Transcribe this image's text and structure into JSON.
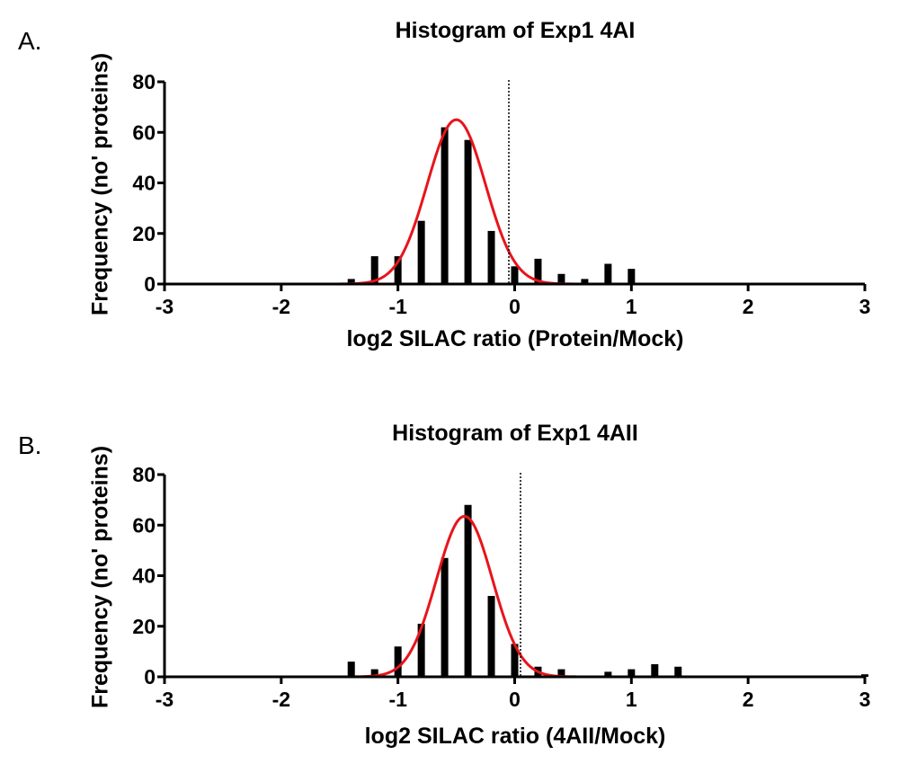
{
  "chart_data": [
    {
      "type": "bar",
      "panel_label": "A.",
      "title": "Histogram of Exp1 4AI",
      "xlabel": "log2 SILAC ratio (Protein/Mock)",
      "ylabel": "Frequency (no' proteins)",
      "xlim": [
        -3,
        3
      ],
      "ylim": [
        0,
        80
      ],
      "xticks": [
        -3,
        -2,
        -1,
        0,
        1,
        2,
        3
      ],
      "yticks": [
        0,
        20,
        40,
        60,
        80
      ],
      "bins": [
        -1.4,
        -1.2,
        -1.0,
        -0.8,
        -0.6,
        -0.4,
        -0.2,
        0.0,
        0.2,
        0.4,
        0.6,
        0.8,
        1.0
      ],
      "counts": [
        2,
        11,
        11,
        25,
        62,
        57,
        21,
        7,
        10,
        4,
        2,
        8,
        6
      ],
      "gaussian_fit": {
        "amplitude": 65,
        "mean": -0.5,
        "sd": 0.25
      },
      "reference_line_x": -0.05
    },
    {
      "type": "bar",
      "panel_label": "B.",
      "title": "Histogram of Exp1 4AII",
      "xlabel": "log2 SILAC ratio (4AII/Mock)",
      "ylabel": "Frequency (no' proteins)",
      "xlim": [
        -3,
        3
      ],
      "ylim": [
        0,
        80
      ],
      "xticks": [
        -3,
        -2,
        -1,
        0,
        1,
        2,
        3
      ],
      "yticks": [
        0,
        20,
        40,
        60,
        80
      ],
      "bins": [
        -1.4,
        -1.2,
        -1.0,
        -0.8,
        -0.6,
        -0.4,
        -0.2,
        0.0,
        0.2,
        0.4,
        0.8,
        1.0,
        1.2,
        1.4,
        3.0
      ],
      "counts": [
        6,
        3,
        12,
        21,
        47,
        68,
        32,
        13,
        4,
        3,
        2,
        3,
        5,
        4,
        1
      ],
      "gaussian_fit": {
        "amplitude": 63.5,
        "mean": -0.43,
        "sd": 0.24
      },
      "reference_line_x": 0.05
    }
  ],
  "colors": {
    "bar": "#000000",
    "fit": "#e8141b",
    "axis": "#000000",
    "refline": "#000000"
  }
}
